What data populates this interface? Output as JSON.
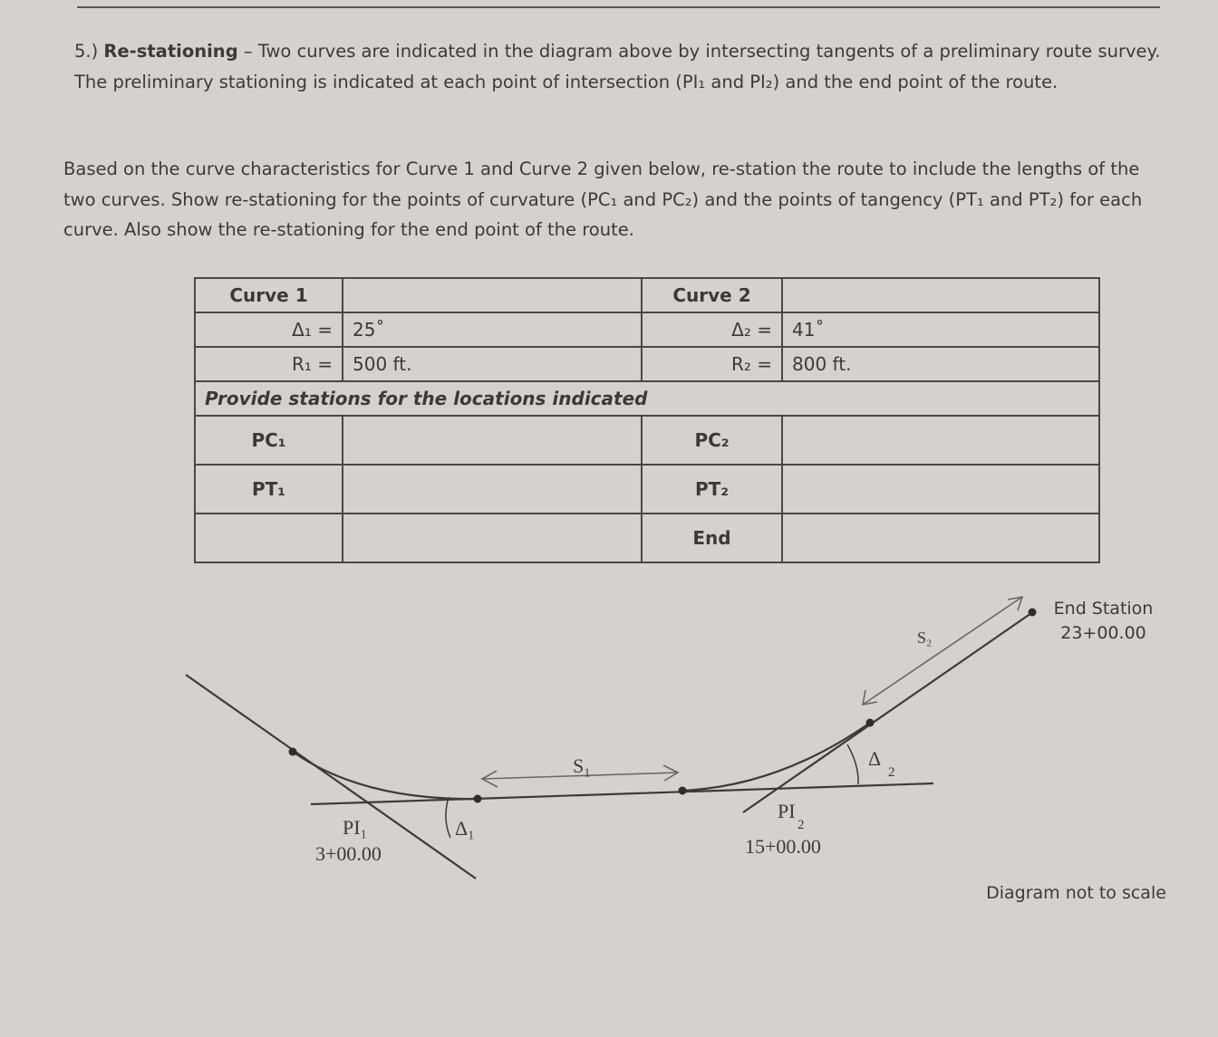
{
  "problem": {
    "number": "5.)",
    "title": "Re-stationing",
    "intro": " – Two curves are indicated in the diagram above by intersecting tangents of a preliminary route survey. The preliminary stationing is indicated at each point of intersection (PI₁ and PI₂) and the end point of the route.",
    "instructions": "Based on the curve characteristics for Curve 1 and Curve 2 given below, re-station the route to include the lengths of the two curves. Show re-stationing for the points of curvature (PC₁ and PC₂) and the points of tangency (PT₁ and PT₂) for each curve. Also show the re-stationing for the end point of the route."
  },
  "table": {
    "curve1_label": "Curve 1",
    "curve2_label": "Curve 2",
    "delta1_label": "Δ₁ =",
    "delta1_value": "25˚",
    "radius1_label": "R₁ =",
    "radius1_value": "500 ft.",
    "delta2_label": "Δ₂ =",
    "delta2_value": "41˚",
    "radius2_label": "R₂ =",
    "radius2_value": "800 ft.",
    "provide_label": "Provide stations for the locations indicated",
    "rows": [
      {
        "left": "PC₁",
        "right": "PC₂"
      },
      {
        "left": "PT₁",
        "right": "PT₂"
      },
      {
        "left": "",
        "right": "End"
      }
    ]
  },
  "diagram": {
    "pi1_label": "PI₁",
    "pi1_station": "3+00.00",
    "pi2_label": "PI",
    "pi2_sub": "2",
    "pi2_station": "15+00.00",
    "delta1": "Δ₁",
    "delta2": "Δ",
    "delta2_sub": "2",
    "s1": "S₁",
    "s2": "S₂",
    "end_label": "End Station",
    "end_station": "23+00.00",
    "note": "Diagram not to scale"
  }
}
